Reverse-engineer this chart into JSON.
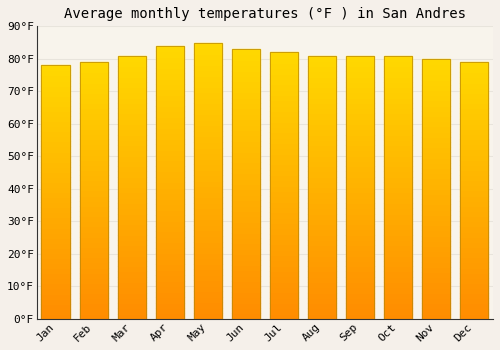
{
  "title": "Average monthly temperatures (°F ) in San Andres",
  "months": [
    "Jan",
    "Feb",
    "Mar",
    "Apr",
    "May",
    "Jun",
    "Jul",
    "Aug",
    "Sep",
    "Oct",
    "Nov",
    "Dec"
  ],
  "values": [
    78,
    79,
    81,
    84,
    85,
    83,
    82,
    81,
    81,
    81,
    80,
    79
  ],
  "bar_color_main": "#FFA500",
  "bar_color_light": "#FFD060",
  "bar_edge_color": "#CC8800",
  "background_color": "#F5F0EA",
  "plot_bg_color": "#F8F4EC",
  "grid_color": "#E8E4DC",
  "ylim": [
    0,
    90
  ],
  "yticks": [
    0,
    10,
    20,
    30,
    40,
    50,
    60,
    70,
    80,
    90
  ],
  "ytick_labels": [
    "0°F",
    "10°F",
    "20°F",
    "30°F",
    "40°F",
    "50°F",
    "60°F",
    "70°F",
    "80°F",
    "90°F"
  ],
  "title_fontsize": 10,
  "tick_fontsize": 8,
  "font_family": "monospace",
  "bar_width": 0.75
}
